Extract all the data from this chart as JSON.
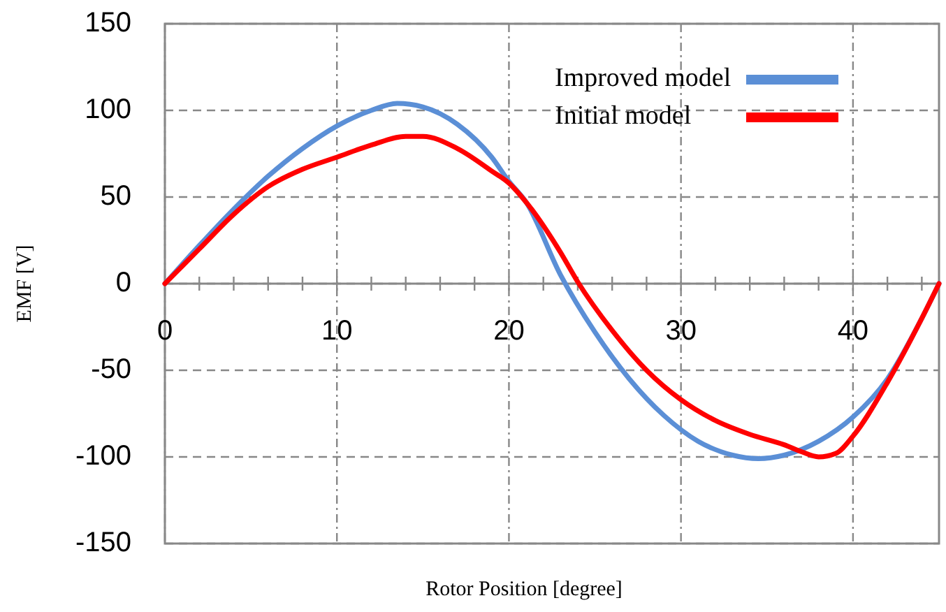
{
  "chart_data": {
    "type": "line",
    "xlabel": "Rotor Position [degree]",
    "ylabel": "EMF [V]",
    "xlim": [
      0,
      45
    ],
    "xticks": [
      0,
      10,
      20,
      30,
      40
    ],
    "ylim": [
      -150,
      150
    ],
    "yticks": [
      -150,
      -100,
      -50,
      0,
      50,
      100,
      150
    ],
    "grid": true,
    "legend": "top right",
    "marker": "none",
    "line_style": "solid",
    "series": [
      {
        "name": "Improved model",
        "color": "#5b8fd6",
        "x": [
          0,
          2,
          4,
          6,
          8,
          10,
          12,
          13.5,
          15,
          17,
          19,
          20,
          21,
          23,
          25,
          27,
          29,
          31,
          33,
          34.5,
          36,
          38,
          40,
          42,
          44,
          45
        ],
        "values": [
          0,
          22,
          43,
          62,
          78,
          91,
          100,
          104,
          102,
          92,
          73,
          59,
          47,
          5,
          -28,
          -55,
          -76,
          -91,
          -99,
          -101,
          -99,
          -91,
          -77,
          -55,
          -20,
          0
        ]
      },
      {
        "name": "Initial model",
        "color": "#ff0000",
        "x": [
          0,
          2,
          4,
          6,
          8,
          10,
          12,
          14,
          15,
          17,
          19,
          20,
          21,
          23,
          24,
          26,
          28,
          30,
          32,
          34,
          36,
          37,
          38,
          39,
          40,
          42,
          44,
          45
        ],
        "values": [
          0,
          20,
          40,
          56,
          66,
          73,
          80,
          85,
          85,
          78,
          65,
          58,
          47,
          18,
          1,
          -27,
          -50,
          -67,
          -79,
          -87,
          -93,
          -97,
          -100,
          -98,
          -88,
          -57,
          -20,
          0
        ]
      }
    ]
  }
}
